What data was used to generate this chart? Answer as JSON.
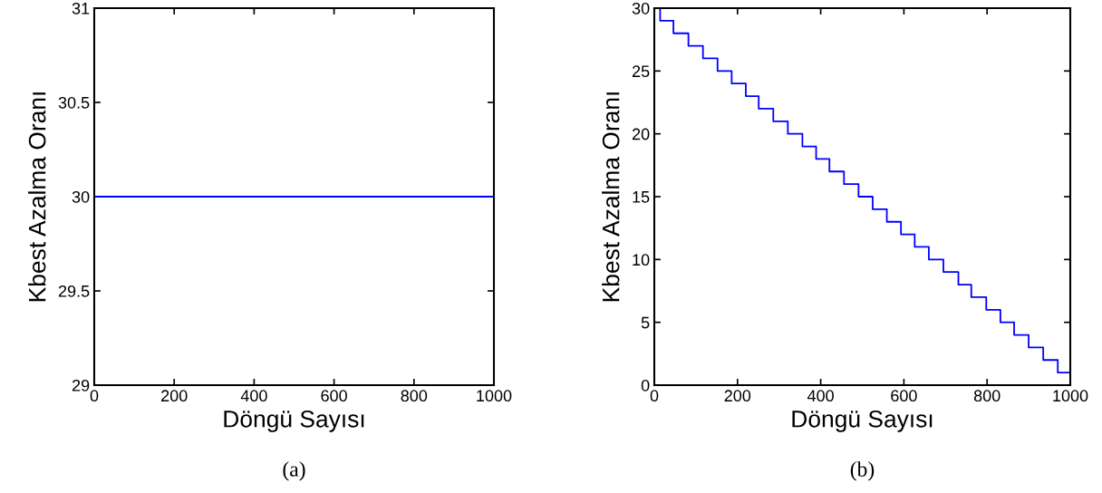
{
  "chart_data": [
    {
      "type": "line",
      "xlabel": "Döngü Sayısı",
      "ylabel": "Kbest Azalma Oranı",
      "annotations": [
        "(a)"
      ],
      "x": [
        0,
        1000
      ],
      "series": [
        {
          "color": "#0000ff",
          "values": [
            30,
            30
          ]
        }
      ],
      "xlim": [
        0,
        1000
      ],
      "xticks": [
        0,
        200,
        400,
        600,
        800,
        1000
      ],
      "ylim": [
        29,
        31
      ],
      "yticks": [
        29,
        29.5,
        30,
        30.5,
        31
      ],
      "grid": false,
      "legend": false
    },
    {
      "type": "step",
      "xlabel": "Döngü Sayısı",
      "ylabel": "Kbest Azalma Oranı",
      "annotations": [
        "(b)"
      ],
      "x": [
        0,
        14,
        46,
        82,
        117,
        152,
        186,
        220,
        251,
        286,
        321,
        356,
        389,
        421,
        456,
        491,
        525,
        559,
        593,
        626,
        660,
        695,
        731,
        762,
        798,
        832,
        865,
        900,
        935,
        970,
        1000
      ],
      "series": [
        {
          "color": "#0000ff",
          "values": [
            30,
            29,
            28,
            27,
            26,
            25,
            24,
            23,
            22,
            21,
            20,
            19,
            18,
            17,
            16,
            15,
            14,
            13,
            12,
            11,
            10,
            9,
            8,
            7,
            6,
            5,
            4,
            3,
            2,
            1,
            1
          ]
        }
      ],
      "xlim": [
        0,
        1000
      ],
      "xticks": [
        0,
        200,
        400,
        600,
        800,
        1000
      ],
      "ylim": [
        0,
        30
      ],
      "yticks": [
        0,
        5,
        10,
        15,
        20,
        25,
        30
      ],
      "grid": false,
      "legend": false
    }
  ]
}
